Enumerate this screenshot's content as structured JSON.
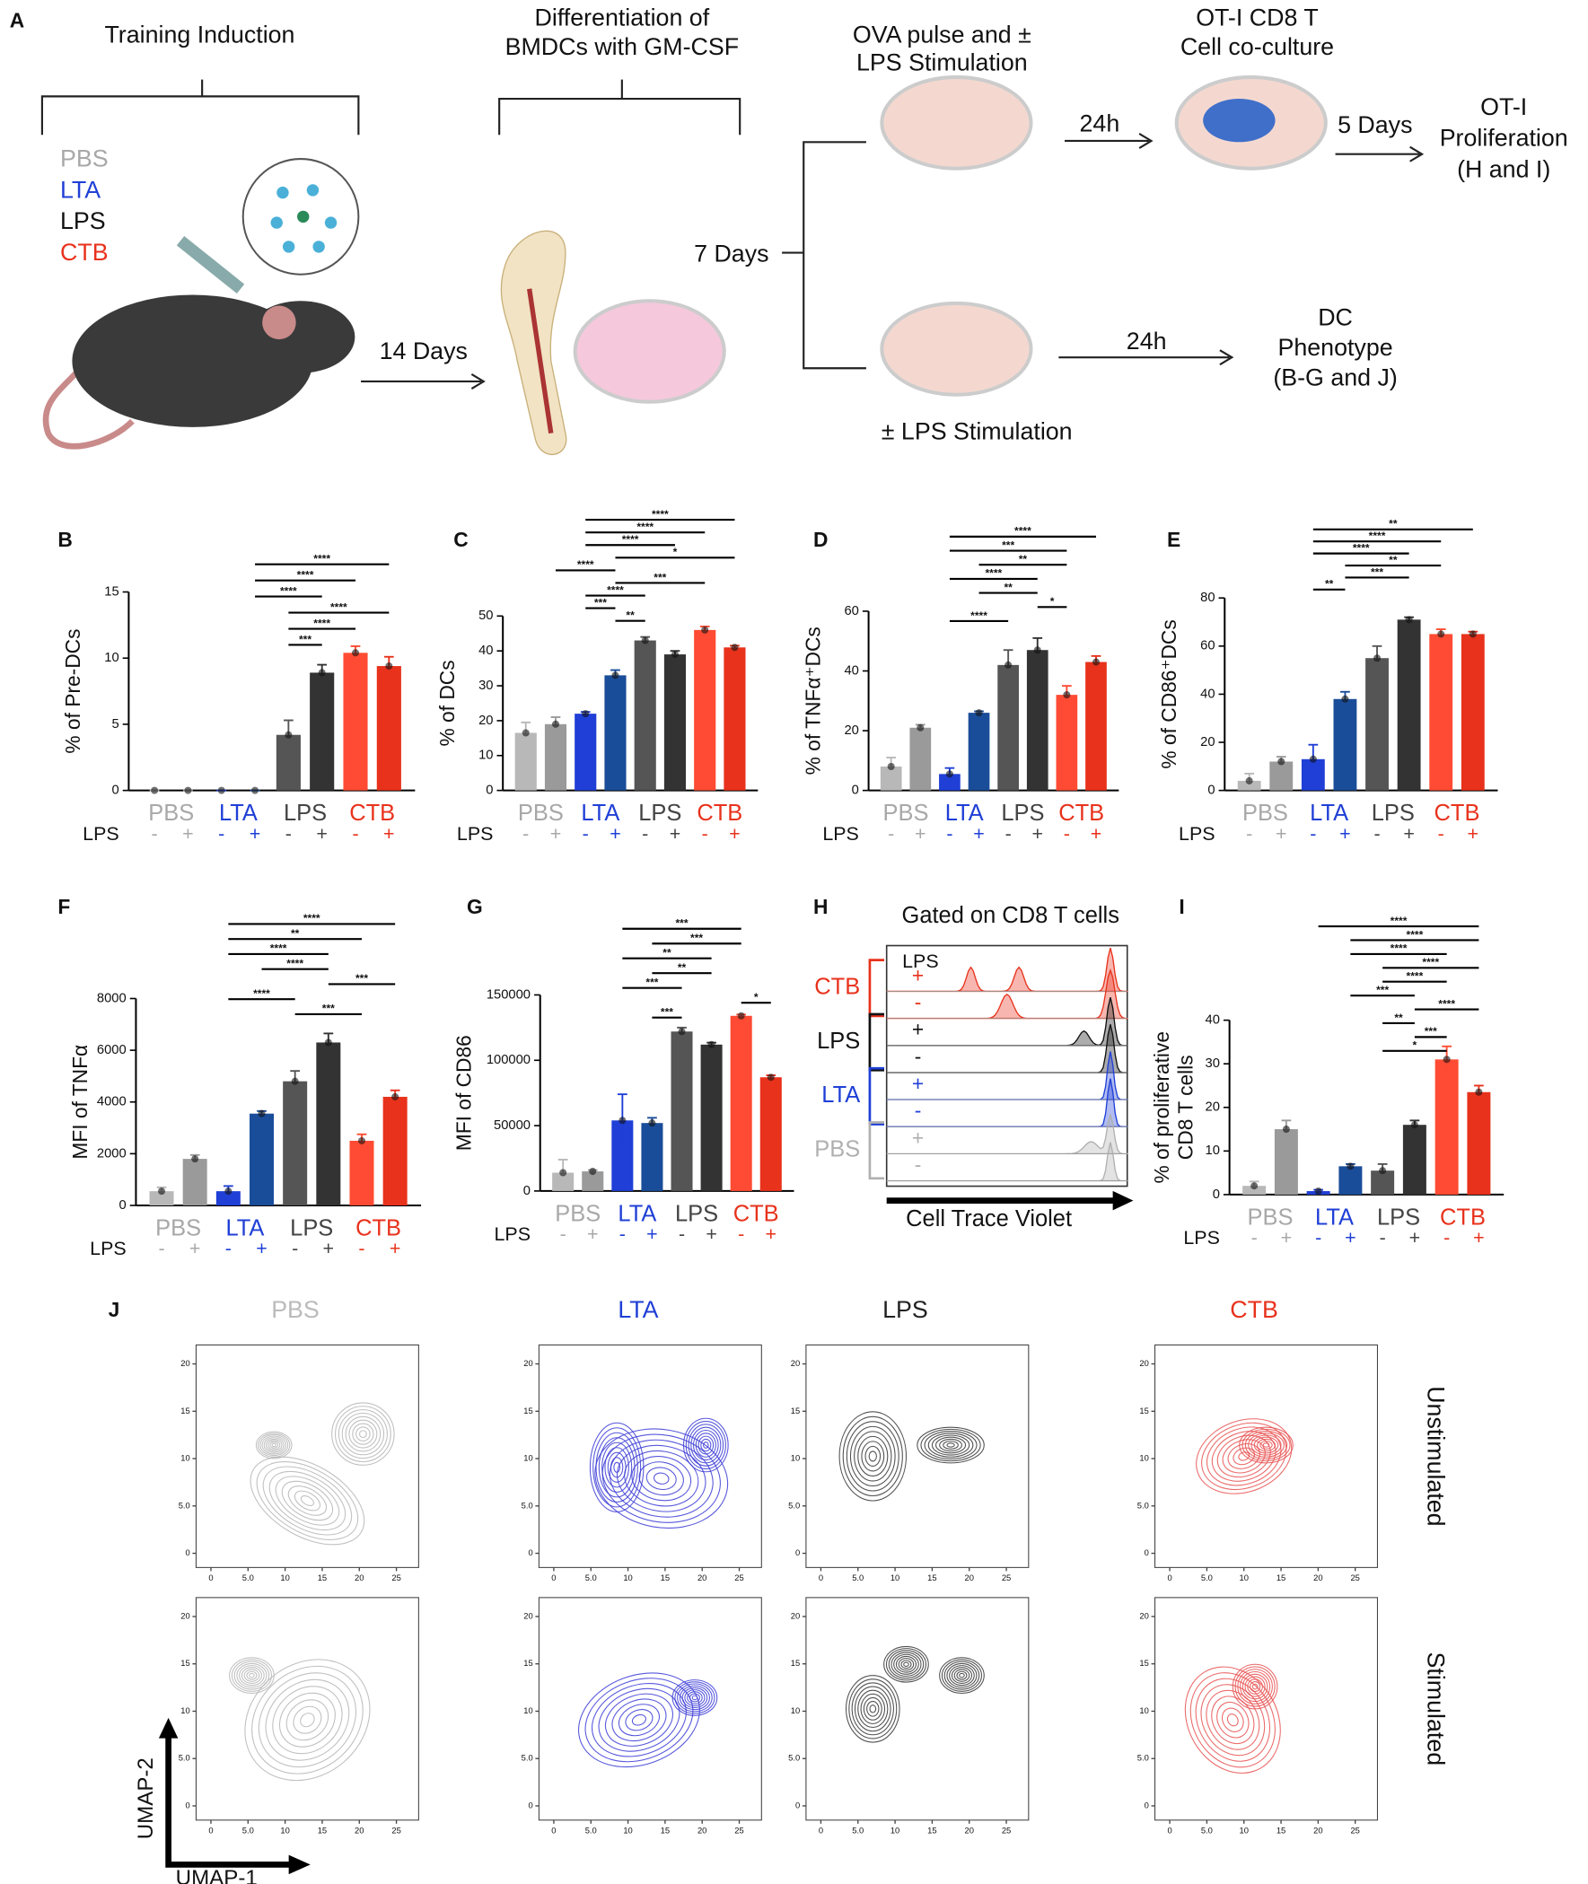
{
  "panel_labels": [
    "A",
    "B",
    "C",
    "D",
    "E",
    "F",
    "G",
    "H",
    "I",
    "J"
  ],
  "schematic": {
    "training_induction": "Training Induction",
    "groups": [
      "PBS",
      "LTA",
      "LPS",
      "CTB"
    ],
    "group_colors": [
      "#a8a8a8",
      "#1f3fd6",
      "#111111",
      "#e8321c"
    ],
    "days14": "14 Days",
    "differentiation": [
      "Differentiation of",
      "BMDCs with GM-CSF"
    ],
    "days7": "7 Days",
    "ova": [
      "OVA pulse and ±",
      "LPS Stimulation"
    ],
    "h24_top": "24h",
    "coculture": [
      "OT-I CD8 T",
      "Cell co-culture"
    ],
    "days5": "5 Days",
    "proliferation": [
      "OT-I",
      "Proliferation",
      "(H and I)"
    ],
    "lps_stim": "± LPS Stimulation",
    "h24_bottom": "24h",
    "phenotype": [
      "DC",
      "Phenotype",
      "(B-G and J)"
    ]
  },
  "chart_data": [
    {
      "type": "bar",
      "ylabel": [
        "% of Pre-DCs"
      ],
      "ylim": [
        0,
        15
      ],
      "yticks": [
        0,
        5,
        10,
        15
      ],
      "groups": [
        "PBS",
        "LTA",
        "LPS",
        "CTB"
      ],
      "group_colors": [
        "#a8a8a8",
        "#1f3fd6",
        "#444444",
        "#e8321c"
      ],
      "stim_label": "LPS",
      "categories": [
        "-",
        "+",
        "-",
        "+",
        "-",
        "+",
        "-",
        "+"
      ],
      "colors": [
        "#b8b8b8",
        "#9a9a9a",
        "#1f3fd6",
        "#1a4d99",
        "#555555",
        "#333333",
        "#ff4b33",
        "#e8321c"
      ],
      "values": [
        0,
        0,
        0,
        0,
        4.2,
        8.9,
        10.4,
        9.4
      ],
      "errors": [
        0,
        0,
        0,
        0,
        1.1,
        0.6,
        0.5,
        0.7
      ],
      "comparisons": [
        {
          "from": 3,
          "to": 7,
          "label": "****"
        },
        {
          "from": 3,
          "to": 6,
          "label": "****"
        },
        {
          "from": 3,
          "to": 5,
          "label": "****"
        },
        {
          "from": 4,
          "to": 7,
          "label": "****"
        },
        {
          "from": 4,
          "to": 6,
          "label": "****"
        },
        {
          "from": 4,
          "to": 5,
          "label": "***"
        }
      ]
    },
    {
      "type": "bar",
      "ylabel": [
        "% of DCs"
      ],
      "ylim": [
        0,
        50
      ],
      "yticks": [
        0,
        10,
        20,
        30,
        40,
        50
      ],
      "groups": [
        "PBS",
        "LTA",
        "LPS",
        "CTB"
      ],
      "group_colors": [
        "#a8a8a8",
        "#1f3fd6",
        "#444444",
        "#e8321c"
      ],
      "stim_label": "LPS",
      "categories": [
        "-",
        "+",
        "-",
        "+",
        "-",
        "+",
        "-",
        "+"
      ],
      "colors": [
        "#b8b8b8",
        "#9a9a9a",
        "#1f3fd6",
        "#1a4d99",
        "#555555",
        "#333333",
        "#ff4b33",
        "#e8321c"
      ],
      "values": [
        16.5,
        19,
        22,
        33,
        43,
        39,
        46,
        41
      ],
      "errors": [
        3,
        2,
        0.5,
        1.5,
        1,
        1,
        1,
        0.5
      ],
      "comparisons": [
        {
          "from": 2,
          "to": 7,
          "label": "****"
        },
        {
          "from": 2,
          "to": 6,
          "label": "****"
        },
        {
          "from": 2,
          "to": 5,
          "label": "****"
        },
        {
          "from": 3,
          "to": 7,
          "label": "*"
        },
        {
          "from": 1,
          "to": 3,
          "label": "****"
        },
        {
          "from": 3,
          "to": 6,
          "label": "***"
        },
        {
          "from": 2,
          "to": 4,
          "label": "****"
        },
        {
          "from": 2,
          "to": 3,
          "label": "***"
        },
        {
          "from": 3,
          "to": 4,
          "label": "**"
        }
      ]
    },
    {
      "type": "bar",
      "ylabel": [
        "% of TNFα⁺DCs"
      ],
      "ylim": [
        0,
        60
      ],
      "yticks": [
        0,
        20,
        40,
        60
      ],
      "groups": [
        "PBS",
        "LTA",
        "LPS",
        "CTB"
      ],
      "group_colors": [
        "#a8a8a8",
        "#1f3fd6",
        "#444444",
        "#e8321c"
      ],
      "stim_label": "LPS",
      "categories": [
        "-",
        "+",
        "-",
        "+",
        "-",
        "+",
        "-",
        "+"
      ],
      "colors": [
        "#b8b8b8",
        "#9a9a9a",
        "#1f3fd6",
        "#1a4d99",
        "#555555",
        "#333333",
        "#ff4b33",
        "#e8321c"
      ],
      "values": [
        8,
        21,
        5.5,
        26,
        42,
        47,
        32,
        43
      ],
      "errors": [
        3,
        1,
        2,
        0.5,
        5,
        4,
        3,
        2
      ],
      "comparisons": [
        {
          "from": 2,
          "to": 7,
          "label": "****"
        },
        {
          "from": 2,
          "to": 6,
          "label": "***"
        },
        {
          "from": 3,
          "to": 6,
          "label": "**"
        },
        {
          "from": 2,
          "to": 5,
          "label": "****"
        },
        {
          "from": 3,
          "to": 5,
          "label": "**"
        },
        {
          "from": 5,
          "to": 6,
          "label": "*"
        },
        {
          "from": 2,
          "to": 4,
          "label": "****"
        }
      ]
    },
    {
      "type": "bar",
      "ylabel": [
        "% of CD86⁺DCs"
      ],
      "ylim": [
        0,
        80
      ],
      "yticks": [
        0,
        20,
        40,
        60,
        80
      ],
      "groups": [
        "PBS",
        "LTA",
        "LPS",
        "CTB"
      ],
      "group_colors": [
        "#a8a8a8",
        "#1f3fd6",
        "#444444",
        "#e8321c"
      ],
      "stim_label": "LPS",
      "categories": [
        "-",
        "+",
        "-",
        "+",
        "-",
        "+",
        "-",
        "+"
      ],
      "colors": [
        "#b8b8b8",
        "#9a9a9a",
        "#1f3fd6",
        "#1a4d99",
        "#555555",
        "#333333",
        "#ff4b33",
        "#e8321c"
      ],
      "values": [
        4,
        12,
        13,
        38,
        55,
        71,
        65,
        65
      ],
      "errors": [
        3,
        2,
        6,
        3,
        5,
        1,
        2,
        1
      ],
      "comparisons": [
        {
          "from": 2,
          "to": 7,
          "label": "**"
        },
        {
          "from": 2,
          "to": 6,
          "label": "****"
        },
        {
          "from": 2,
          "to": 5,
          "label": "****"
        },
        {
          "from": 3,
          "to": 6,
          "label": "**"
        },
        {
          "from": 3,
          "to": 5,
          "label": "***"
        },
        {
          "from": 2,
          "to": 3,
          "label": "**"
        }
      ]
    },
    {
      "type": "bar",
      "ylabel": [
        "MFI of TNFα"
      ],
      "ylim": [
        0,
        8000
      ],
      "yticks": [
        0,
        2000,
        4000,
        6000,
        8000
      ],
      "groups": [
        "PBS",
        "LTA",
        "LPS",
        "CTB"
      ],
      "group_colors": [
        "#a8a8a8",
        "#1f3fd6",
        "#444444",
        "#e8321c"
      ],
      "stim_label": "LPS",
      "categories": [
        "-",
        "+",
        "-",
        "+",
        "-",
        "+",
        "-",
        "+"
      ],
      "colors": [
        "#b8b8b8",
        "#9a9a9a",
        "#1f3fd6",
        "#1a4d99",
        "#555555",
        "#333333",
        "#ff4b33",
        "#e8321c"
      ],
      "values": [
        550,
        1800,
        550,
        3550,
        4800,
        6300,
        2500,
        4200
      ],
      "errors": [
        150,
        150,
        200,
        100,
        400,
        350,
        250,
        250
      ],
      "comparisons": [
        {
          "from": 2,
          "to": 7,
          "label": "****"
        },
        {
          "from": 2,
          "to": 6,
          "label": "**"
        },
        {
          "from": 2,
          "to": 5,
          "label": "****"
        },
        {
          "from": 3,
          "to": 5,
          "label": "****"
        },
        {
          "from": 5,
          "to": 7,
          "label": "***"
        },
        {
          "from": 2,
          "to": 4,
          "label": "****"
        },
        {
          "from": 4,
          "to": 6,
          "label": "***"
        }
      ]
    },
    {
      "type": "bar",
      "ylabel": [
        "MFI of CD86"
      ],
      "ylim": [
        0,
        150000
      ],
      "yticks": [
        0,
        50000,
        100000,
        150000
      ],
      "groups": [
        "PBS",
        "LTA",
        "LPS",
        "CTB"
      ],
      "group_colors": [
        "#a8a8a8",
        "#1f3fd6",
        "#444444",
        "#e8321c"
      ],
      "stim_label": "LPS",
      "categories": [
        "-",
        "+",
        "-",
        "+",
        "-",
        "+",
        "-",
        "+"
      ],
      "colors": [
        "#b8b8b8",
        "#9a9a9a",
        "#1f3fd6",
        "#1a4d99",
        "#555555",
        "#333333",
        "#ff4b33",
        "#e8321c"
      ],
      "values": [
        14000,
        15000,
        54000,
        52000,
        122000,
        112000,
        134000,
        87000
      ],
      "errors": [
        10000,
        1000,
        20000,
        4000,
        3000,
        1500,
        1000,
        1500
      ],
      "comparisons": [
        {
          "from": 2,
          "to": 6,
          "label": "***"
        },
        {
          "from": 3,
          "to": 6,
          "label": "***"
        },
        {
          "from": 2,
          "to": 5,
          "label": "**"
        },
        {
          "from": 3,
          "to": 5,
          "label": "**"
        },
        {
          "from": 2,
          "to": 4,
          "label": "***"
        },
        {
          "from": 6,
          "to": 7,
          "label": "*"
        },
        {
          "from": 3,
          "to": 4,
          "label": "***"
        }
      ]
    },
    {
      "type": "bar",
      "ylabel": [
        "% of proliferative",
        "CD8 T cells"
      ],
      "ylim": [
        0,
        40
      ],
      "yticks": [
        0,
        10,
        20,
        30,
        40
      ],
      "groups": [
        "PBS",
        "LTA",
        "LPS",
        "CTB"
      ],
      "group_colors": [
        "#a8a8a8",
        "#1f3fd6",
        "#444444",
        "#e8321c"
      ],
      "stim_label": "LPS",
      "categories": [
        "-",
        "+",
        "-",
        "+",
        "-",
        "+",
        "-",
        "+"
      ],
      "colors": [
        "#b8b8b8",
        "#9a9a9a",
        "#1f3fd6",
        "#1a4d99",
        "#555555",
        "#333333",
        "#ff4b33",
        "#e8321c"
      ],
      "values": [
        2,
        15,
        0.8,
        6.5,
        5.5,
        16,
        31,
        23.5
      ],
      "errors": [
        1,
        2,
        0.3,
        0.5,
        1.5,
        1,
        3,
        1.5
      ],
      "comparisons": [
        {
          "from": 2,
          "to": 7,
          "label": "****"
        },
        {
          "from": 3,
          "to": 7,
          "label": "****"
        },
        {
          "from": 3,
          "to": 6,
          "label": "****"
        },
        {
          "from": 4,
          "to": 7,
          "label": "****"
        },
        {
          "from": 4,
          "to": 6,
          "label": "****"
        },
        {
          "from": 3,
          "to": 5,
          "label": "***"
        },
        {
          "from": 5,
          "to": 7,
          "label": "****"
        },
        {
          "from": 4,
          "to": 5,
          "label": "**"
        },
        {
          "from": 5,
          "to": 6,
          "label": "***"
        },
        {
          "from": 4,
          "to": 6,
          "label": "*"
        }
      ]
    }
  ],
  "panel_h": {
    "title": "Gated on CD8 T cells",
    "stim_label": "LPS",
    "groups": [
      "CTB",
      "LPS",
      "LTA",
      "PBS"
    ],
    "group_colors": [
      "#e8321c",
      "#111111",
      "#1f3fd6",
      "#b0b0b0"
    ],
    "signs": [
      "+",
      "-",
      "+",
      "-",
      "+",
      "-",
      "+",
      "-"
    ],
    "xlabel": "Cell Trace Violet"
  },
  "panel_j": {
    "titles": [
      "PBS",
      "LTA",
      "LPS",
      "CTB"
    ],
    "title_colors": [
      "#bbbbbb",
      "#1f3fd6",
      "#222222",
      "#e8321c"
    ],
    "colors": [
      "#b5b5b5",
      "#3a3ad6",
      "#333333",
      "#e85050"
    ],
    "rows": [
      "Unstimulated",
      "Stimulated"
    ],
    "xlabel": "UMAP-1",
    "ylabel": "UMAP-2",
    "xlim": [
      -2,
      28
    ],
    "ylim": [
      -1.5,
      22
    ],
    "xticks": [
      0,
      {
        "value": 5,
        "label": "5.0"
      },
      10,
      15,
      20,
      25
    ],
    "yticks": [
      0,
      {
        "value": 5,
        "label": "5.0"
      },
      10,
      15,
      20
    ]
  }
}
